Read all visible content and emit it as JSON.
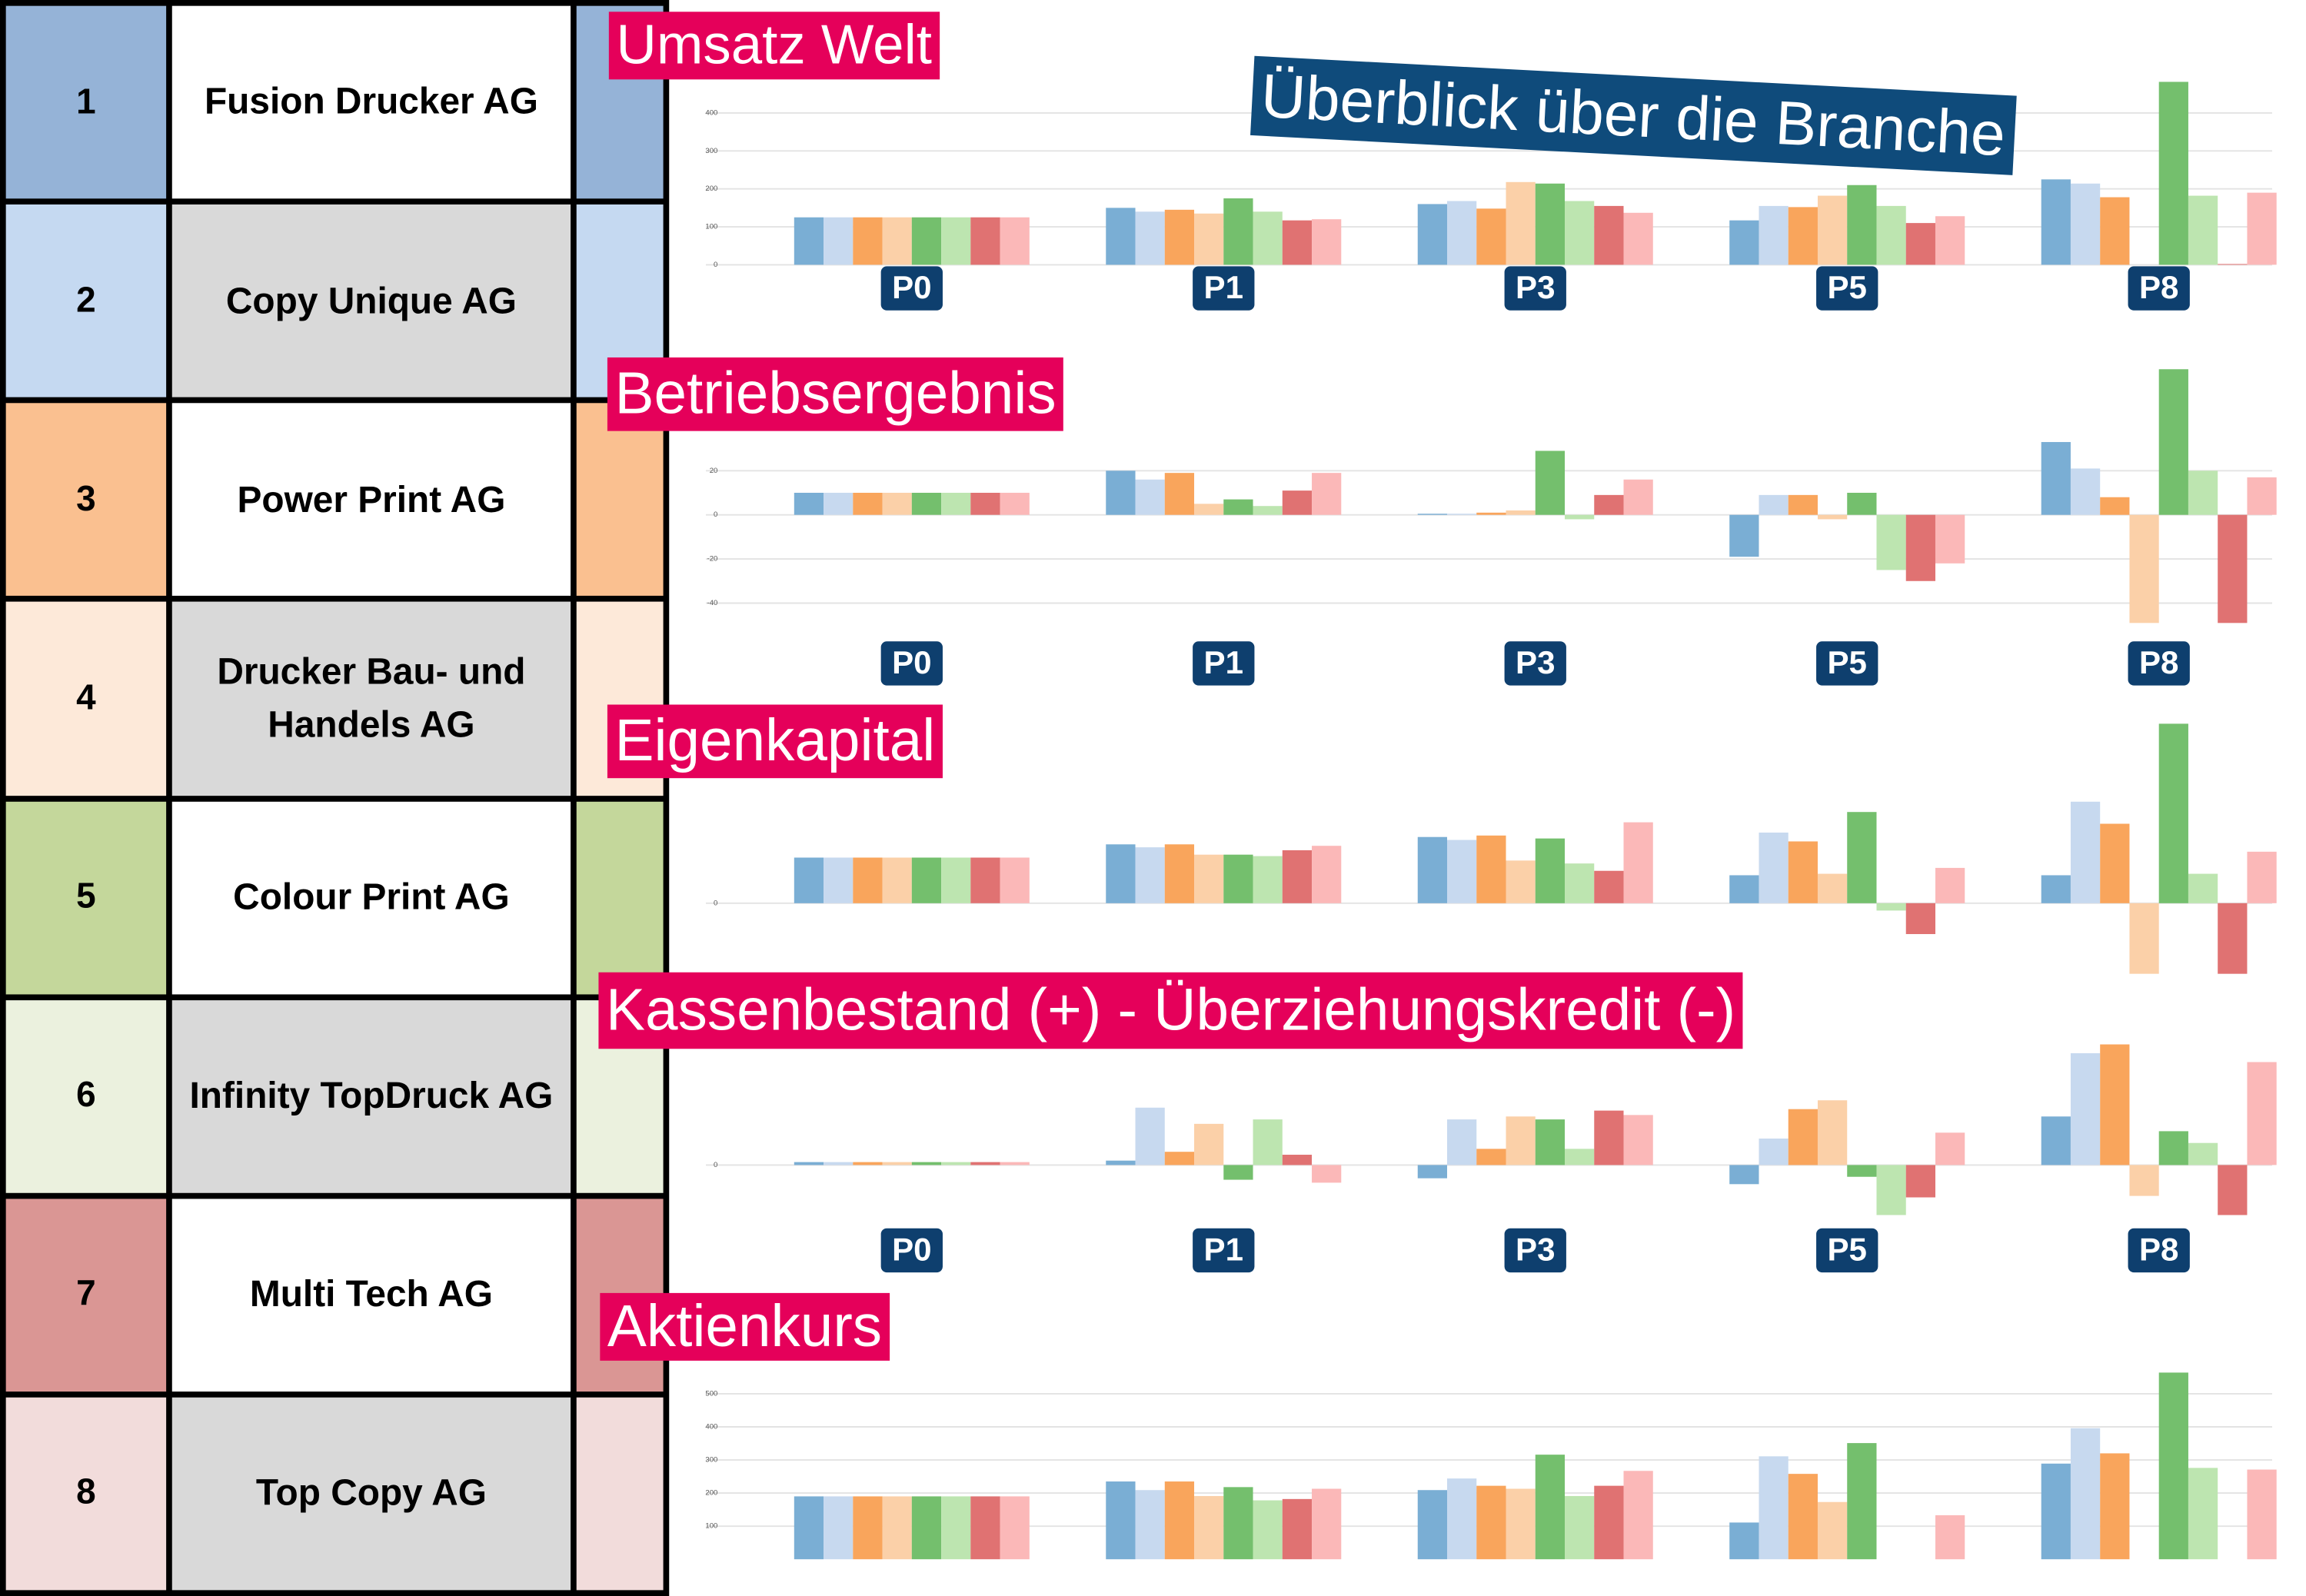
{
  "title": "Überblick über die Branche",
  "companies": [
    {
      "rank": 1,
      "name": "Fusion Drucker AG",
      "color": "#95b3d7"
    },
    {
      "rank": 2,
      "name": "Copy Unique AG",
      "color": "#c5d9f1"
    },
    {
      "rank": 3,
      "name": "Power Print AG",
      "color": "#fac090"
    },
    {
      "rank": 4,
      "name": "Drucker Bau- und Handels AG",
      "color": "#fde9d9"
    },
    {
      "rank": 5,
      "name": "Colour Print AG",
      "color": "#c4d79b"
    },
    {
      "rank": 6,
      "name": "Infinity TopDruck AG",
      "color": "#ebf1de"
    },
    {
      "rank": 7,
      "name": "Multi Tech AG",
      "color": "#da9694"
    },
    {
      "rank": 8,
      "name": "Top Copy AG",
      "color": "#f2dcdb"
    }
  ],
  "chart_data": [
    {
      "type": "bar",
      "title": "Umsatz Welt",
      "categories": [
        "P0",
        "P1",
        "P3",
        "P5",
        "P8"
      ],
      "ylim": [
        0,
        500
      ],
      "yticks": [
        0,
        100,
        200,
        300,
        400
      ],
      "grid": true,
      "series": [
        {
          "color": "#7aaed4",
          "values": [
            125,
            150,
            160,
            117,
            225
          ]
        },
        {
          "color": "#c7d9ef",
          "values": [
            125,
            140,
            168,
            155,
            214
          ]
        },
        {
          "color": "#f9a55c",
          "values": [
            125,
            145,
            148,
            152,
            178
          ]
        },
        {
          "color": "#fbd0a8",
          "values": [
            125,
            135,
            218,
            182,
            0
          ]
        },
        {
          "color": "#74bf6d",
          "values": [
            125,
            175,
            214,
            210,
            482
          ]
        },
        {
          "color": "#bde5b0",
          "values": [
            125,
            140,
            168,
            155,
            182
          ]
        },
        {
          "color": "#e07272",
          "values": [
            125,
            117,
            155,
            110,
            2
          ]
        },
        {
          "color": "#fbb8b8",
          "values": [
            125,
            120,
            137,
            128,
            190
          ]
        }
      ]
    },
    {
      "type": "bar",
      "title": "Betriebsergebnis",
      "categories": [
        "P0",
        "P1",
        "P3",
        "P5",
        "P8"
      ],
      "ylim": [
        -50,
        70
      ],
      "yticks": [
        -40,
        -20,
        0,
        20
      ],
      "grid": true,
      "series": [
        {
          "color": "#7aaed4",
          "values": [
            10,
            20,
            0.5,
            -19,
            33
          ]
        },
        {
          "color": "#c7d9ef",
          "values": [
            10,
            16,
            0.5,
            9,
            21
          ]
        },
        {
          "color": "#f9a55c",
          "values": [
            10,
            19,
            1,
            9,
            8
          ]
        },
        {
          "color": "#fbd0a8",
          "values": [
            10,
            5,
            2,
            -2,
            -49
          ]
        },
        {
          "color": "#74bf6d",
          "values": [
            10,
            7,
            29,
            10,
            66
          ]
        },
        {
          "color": "#bde5b0",
          "values": [
            10,
            4,
            -2,
            -25,
            20
          ]
        },
        {
          "color": "#e07272",
          "values": [
            10,
            11,
            9,
            -30,
            -49
          ]
        },
        {
          "color": "#fbb8b8",
          "values": [
            10,
            19,
            16,
            -22,
            17
          ]
        }
      ]
    },
    {
      "type": "bar",
      "title": "Eigenkapital",
      "categories": [
        null,
        null,
        null,
        null,
        null
      ],
      "ylim": [
        -55,
        125
      ],
      "yticks": [
        0
      ],
      "grid": true,
      "series": [
        {
          "color": "#7aaed4",
          "values": [
            31,
            40,
            45,
            19,
            19
          ]
        },
        {
          "color": "#c7d9ef",
          "values": [
            31,
            38,
            43,
            48,
            69
          ]
        },
        {
          "color": "#f9a55c",
          "values": [
            31,
            40,
            46,
            42,
            54
          ]
        },
        {
          "color": "#fbd0a8",
          "values": [
            31,
            33,
            29,
            20,
            -48
          ]
        },
        {
          "color": "#74bf6d",
          "values": [
            31,
            33,
            44,
            62,
            122
          ]
        },
        {
          "color": "#bde5b0",
          "values": [
            31,
            32,
            27,
            -5,
            20
          ]
        },
        {
          "color": "#e07272",
          "values": [
            31,
            36,
            22,
            -21,
            -48
          ]
        },
        {
          "color": "#fbb8b8",
          "values": [
            31,
            39,
            55,
            24,
            35
          ]
        }
      ]
    },
    {
      "type": "bar",
      "title": "Kassenbestand (+) - Überziehungskredit (-)",
      "categories": [
        "P0",
        "P1",
        "P3",
        "P5",
        "P8"
      ],
      "ylim": [
        -40,
        85
      ],
      "yticks": [
        0
      ],
      "grid": true,
      "series": [
        {
          "color": "#7aaed4",
          "values": [
            2,
            3,
            -9,
            -13,
            33
          ]
        },
        {
          "color": "#c7d9ef",
          "values": [
            2,
            39,
            31,
            18,
            76
          ]
        },
        {
          "color": "#f9a55c",
          "values": [
            2,
            9,
            11,
            38,
            82
          ]
        },
        {
          "color": "#fbd0a8",
          "values": [
            2,
            28,
            33,
            44,
            -21
          ]
        },
        {
          "color": "#74bf6d",
          "values": [
            2,
            -10,
            31,
            -8,
            23
          ]
        },
        {
          "color": "#bde5b0",
          "values": [
            2,
            31,
            11,
            -34,
            15
          ]
        },
        {
          "color": "#e07272",
          "values": [
            2,
            7,
            37,
            -22,
            -34
          ]
        },
        {
          "color": "#fbb8b8",
          "values": [
            2,
            -12,
            34,
            22,
            70
          ]
        }
      ]
    },
    {
      "type": "bar",
      "title": "Aktienkurs",
      "categories": [
        null,
        null,
        null,
        null,
        null
      ],
      "ylim": [
        0,
        580
      ],
      "yticks": [
        100,
        200,
        300,
        400,
        500
      ],
      "grid": true,
      "series": [
        {
          "color": "#7aaed4",
          "values": [
            190,
            235,
            209,
            111,
            289
          ]
        },
        {
          "color": "#c7d9ef",
          "values": [
            190,
            209,
            244,
            311,
            396
          ]
        },
        {
          "color": "#f9a55c",
          "values": [
            190,
            235,
            222,
            258,
            320
          ]
        },
        {
          "color": "#fbd0a8",
          "values": [
            190,
            191,
            213,
            173,
            0
          ]
        },
        {
          "color": "#74bf6d",
          "values": [
            190,
            218,
            316,
            351,
            564
          ]
        },
        {
          "color": "#bde5b0",
          "values": [
            190,
            178,
            191,
            0,
            276
          ]
        },
        {
          "color": "#e07272",
          "values": [
            190,
            182,
            222,
            0,
            0
          ]
        },
        {
          "color": "#fbb8b8",
          "values": [
            190,
            213,
            267,
            133,
            271
          ]
        }
      ]
    }
  ]
}
